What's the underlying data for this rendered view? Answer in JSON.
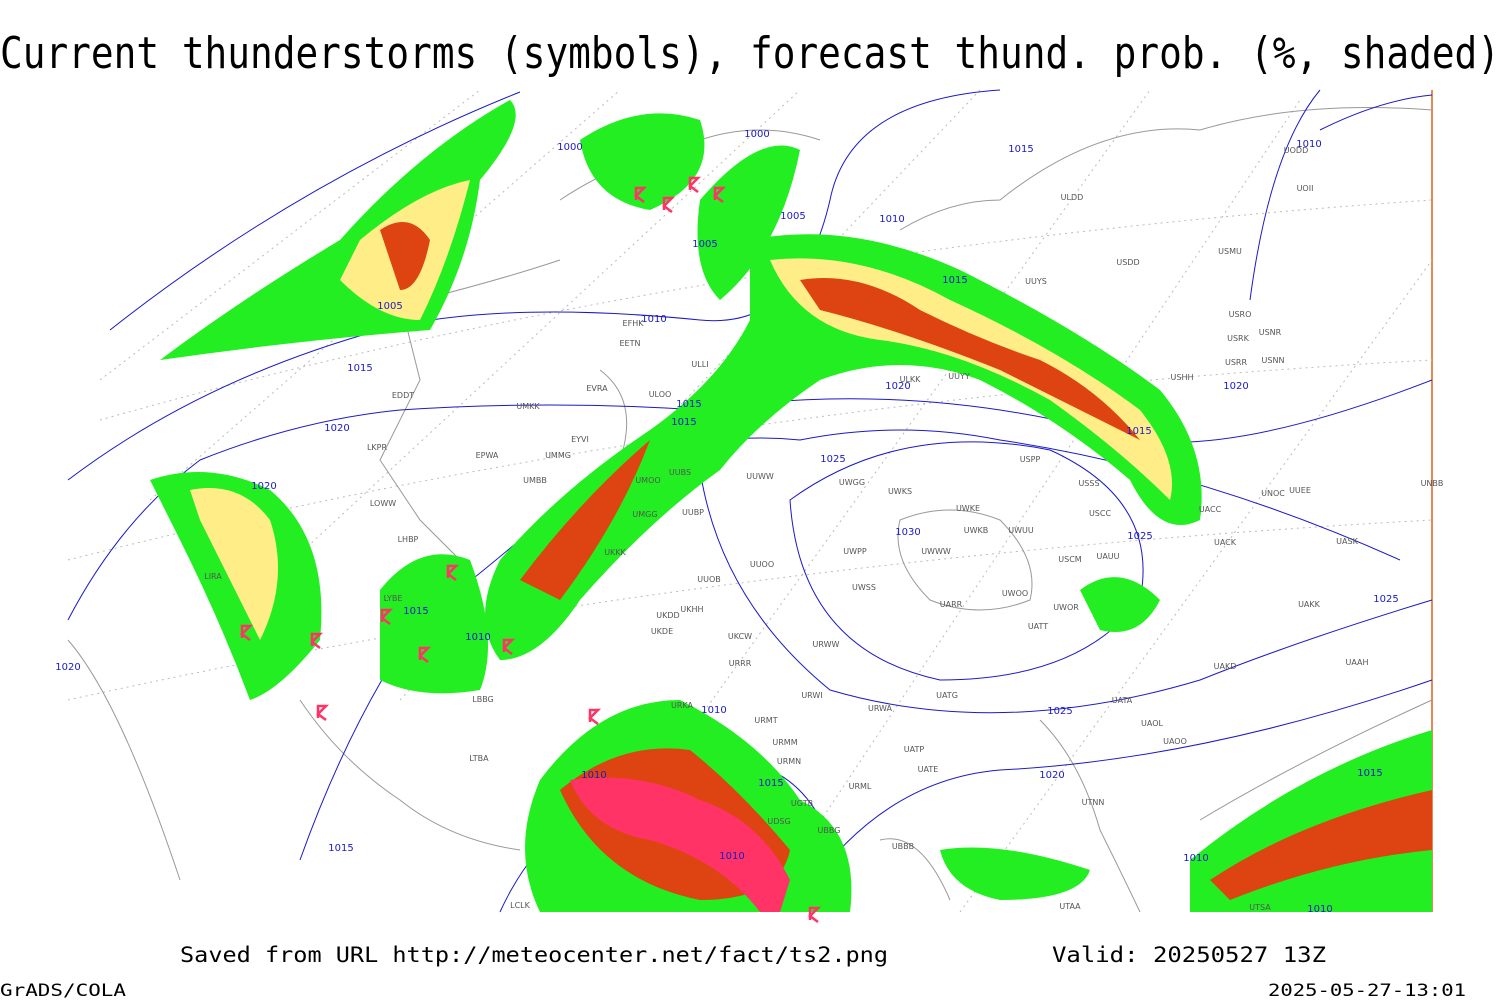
{
  "header": {
    "title": "Current thunderstorms (symbols), forecast thund. prob. (%, shaded)"
  },
  "isobars": [
    {
      "label": "1000"
    },
    {
      "label": "1000"
    },
    {
      "label": "1005"
    },
    {
      "label": "1005"
    },
    {
      "label": "1005"
    },
    {
      "label": "1010"
    },
    {
      "label": "1010"
    },
    {
      "label": "1015"
    },
    {
      "label": "1015"
    },
    {
      "label": "1015"
    },
    {
      "label": "1015"
    },
    {
      "label": "1015"
    },
    {
      "label": "1015"
    },
    {
      "label": "1020"
    },
    {
      "label": "1020"
    },
    {
      "label": "1020"
    },
    {
      "label": "1020"
    },
    {
      "label": "1025"
    },
    {
      "label": "1025"
    },
    {
      "label": "1025"
    },
    {
      "label": "1025"
    },
    {
      "label": "1020"
    },
    {
      "label": "1015"
    },
    {
      "label": "1010"
    },
    {
      "label": "1010"
    },
    {
      "label": "1010"
    },
    {
      "label": "1015"
    },
    {
      "label": "1010"
    },
    {
      "label": "1015"
    },
    {
      "label": "1015"
    },
    {
      "label": "1010"
    },
    {
      "label": "1010"
    },
    {
      "label": "1010"
    },
    {
      "label": "1030"
    },
    {
      "label": "1020"
    }
  ],
  "stations": [
    {
      "code": "ULDD"
    },
    {
      "code": "USDD"
    },
    {
      "code": "USMU"
    },
    {
      "code": "USRO"
    },
    {
      "code": "USRK"
    },
    {
      "code": "USNR"
    },
    {
      "code": "USRR"
    },
    {
      "code": "USNN"
    },
    {
      "code": "USHH"
    },
    {
      "code": "UUYY"
    },
    {
      "code": "ULKK"
    },
    {
      "code": "UUYS"
    },
    {
      "code": "USPP"
    },
    {
      "code": "USSS"
    },
    {
      "code": "USCC"
    },
    {
      "code": "UWKE"
    },
    {
      "code": "UWKS"
    },
    {
      "code": "UWGG"
    },
    {
      "code": "UWKB"
    },
    {
      "code": "UWUU"
    },
    {
      "code": "UWPP"
    },
    {
      "code": "UWWW"
    },
    {
      "code": "USCM"
    },
    {
      "code": "UAUU"
    },
    {
      "code": "UWSS"
    },
    {
      "code": "UARR"
    },
    {
      "code": "UWOO"
    },
    {
      "code": "UWOR"
    },
    {
      "code": "UATT"
    },
    {
      "code": "URWW"
    },
    {
      "code": "URWI"
    },
    {
      "code": "UATG"
    },
    {
      "code": "URWA"
    },
    {
      "code": "UATA"
    },
    {
      "code": "UAOL"
    },
    {
      "code": "UAOO"
    },
    {
      "code": "UATP"
    },
    {
      "code": "UATE"
    },
    {
      "code": "URML"
    },
    {
      "code": "UTNN"
    },
    {
      "code": "UACC"
    },
    {
      "code": "UNOC"
    },
    {
      "code": "UNBB"
    },
    {
      "code": "UACK"
    },
    {
      "code": "UASK"
    },
    {
      "code": "UAKK"
    },
    {
      "code": "UAKD"
    },
    {
      "code": "UAAH"
    },
    {
      "code": "UUOO"
    },
    {
      "code": "UUOB"
    },
    {
      "code": "UKHH"
    },
    {
      "code": "UKDD"
    },
    {
      "code": "UKDE"
    },
    {
      "code": "UKCW"
    },
    {
      "code": "URRR"
    },
    {
      "code": "URKA"
    },
    {
      "code": "URMT"
    },
    {
      "code": "URMM"
    },
    {
      "code": "URMN"
    },
    {
      "code": "UGTB"
    },
    {
      "code": "UBBG"
    },
    {
      "code": "UBBB"
    },
    {
      "code": "UDSG"
    },
    {
      "code": "UTAA"
    },
    {
      "code": "UTSA"
    },
    {
      "code": "LIRA"
    },
    {
      "code": "LHBP"
    },
    {
      "code": "LYBE"
    },
    {
      "code": "LBBG"
    },
    {
      "code": "LTBA"
    },
    {
      "code": "LCLK"
    },
    {
      "code": "UKKK"
    },
    {
      "code": "UMGG"
    },
    {
      "code": "UUBP"
    },
    {
      "code": "UMOO"
    },
    {
      "code": "LOWW"
    },
    {
      "code": "LKPR"
    },
    {
      "code": "EDDT"
    },
    {
      "code": "EFHK"
    },
    {
      "code": "EETN"
    },
    {
      "code": "EVRA"
    },
    {
      "code": "ULOO"
    },
    {
      "code": "UMKK"
    },
    {
      "code": "EYVI"
    },
    {
      "code": "EPWA"
    },
    {
      "code": "UMMG"
    },
    {
      "code": "UMBB"
    },
    {
      "code": "UUBS"
    },
    {
      "code": "UUWW"
    },
    {
      "code": "ULLI"
    },
    {
      "code": "UUEE"
    },
    {
      "code": "UODD"
    },
    {
      "code": "UOII"
    }
  ],
  "footer": {
    "saved": "Saved from URL http://meteocenter.net/fact/ts2.png",
    "valid": "Valid: 20250527 13Z",
    "software": "GrADS/COLA",
    "timestamp": "2025-05-27-13:01"
  }
}
